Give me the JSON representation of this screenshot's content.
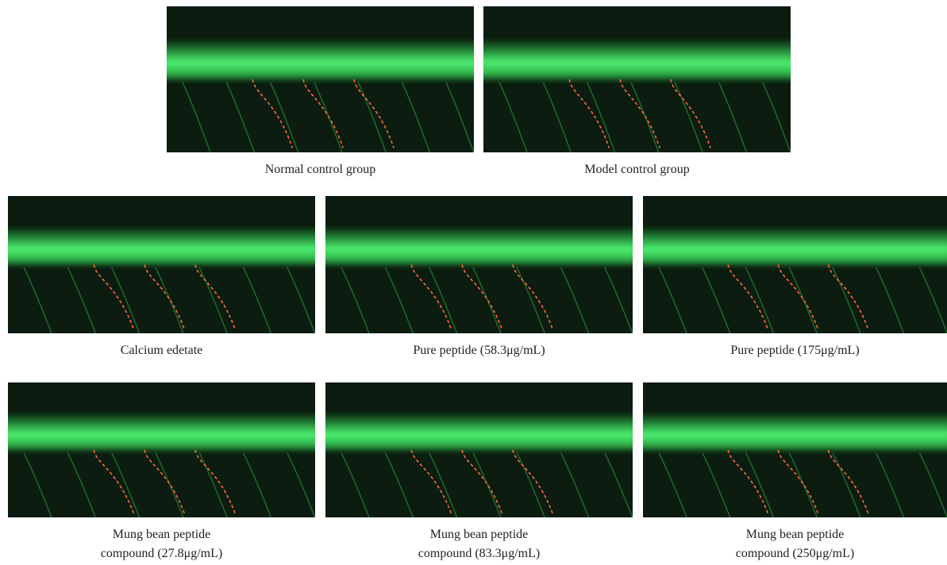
{
  "panels": [
    {
      "caption": [
        "Normal control group"
      ]
    },
    {
      "caption": [
        "Model control group"
      ]
    },
    {
      "caption": [
        "Calcium edetate"
      ]
    },
    {
      "caption": [
        "Pure peptide (58.3μg/mL)"
      ]
    },
    {
      "caption": [
        "Pure peptide (175μg/mL)"
      ]
    },
    {
      "caption": [
        "Mung bean peptide",
        "compound (27.8μg/mL)"
      ]
    },
    {
      "caption": [
        "Mung bean peptide",
        "compound (83.3μg/mL)"
      ]
    },
    {
      "caption": [
        "Mung bean peptide",
        "compound (250μg/mL)"
      ]
    }
  ]
}
